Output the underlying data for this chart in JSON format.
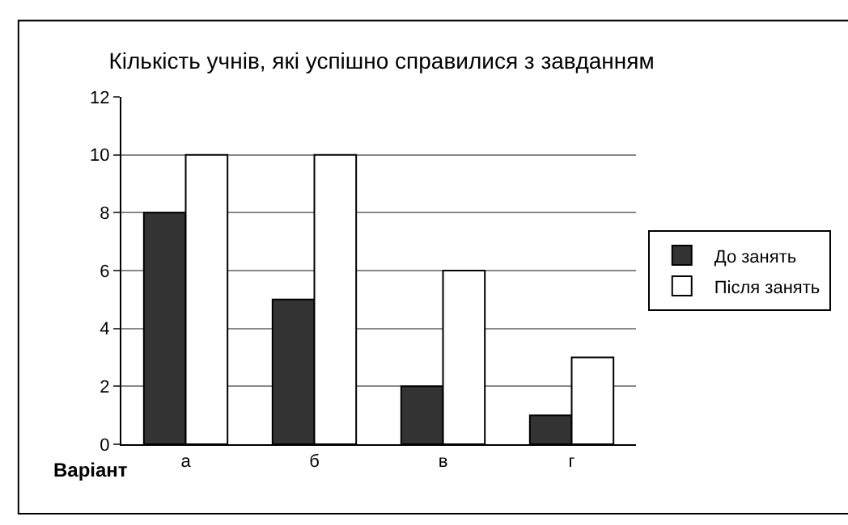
{
  "chart_data": {
    "type": "bar",
    "title": "Кількість учнів, які успішно справилися з завданням",
    "xlabel": "Варіант",
    "categories": [
      "а",
      "б",
      "в",
      "г"
    ],
    "series": [
      {
        "name": "До занять",
        "color": "#333333",
        "values": [
          8,
          5,
          2,
          1
        ]
      },
      {
        "name": "Після занять",
        "color": "#ffffff",
        "values": [
          10,
          10,
          6,
          3
        ]
      }
    ],
    "ylim": [
      0,
      12
    ],
    "yticks": [
      0,
      2,
      4,
      6,
      8,
      10,
      12
    ],
    "grid": "y",
    "legend": "right"
  }
}
